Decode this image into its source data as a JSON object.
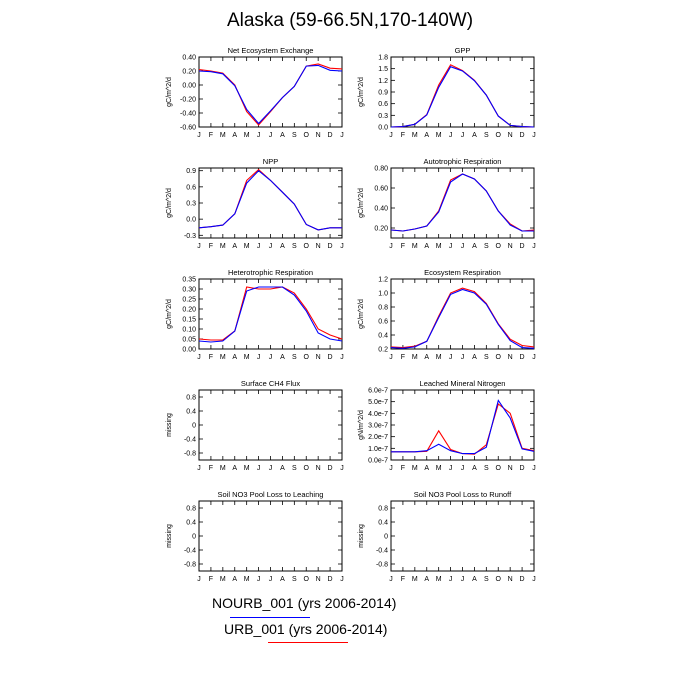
{
  "figure": {
    "title": "Alaska (59-66.5N,170-140W)",
    "legend": [
      {
        "label": "NOURB_001 (yrs 2006-2014)",
        "color": "#0000ff"
      },
      {
        "label": "URB_001 (yrs 2006-2014)",
        "color": "#ff0000"
      }
    ]
  },
  "chart_data": [
    {
      "type": "line",
      "title": "Net Ecosystem Exchange",
      "ylabel": "gC/m^2/d",
      "ylim": [
        -0.6,
        0.4
      ],
      "yticks": [
        "0.40",
        "0.20",
        "0.00",
        "-0.20",
        "-0.40",
        "-0.60"
      ],
      "categories": [
        "J",
        "F",
        "M",
        "A",
        "M",
        "J",
        "J",
        "A",
        "S",
        "O",
        "N",
        "D",
        "J"
      ],
      "series": [
        {
          "color": "#ff0000",
          "values": [
            0.22,
            0.2,
            0.17,
            0.0,
            -0.38,
            -0.57,
            -0.38,
            -0.18,
            -0.02,
            0.27,
            0.3,
            0.24,
            0.23
          ]
        },
        {
          "color": "#0000ff",
          "values": [
            0.2,
            0.19,
            0.16,
            -0.01,
            -0.35,
            -0.55,
            -0.37,
            -0.18,
            -0.02,
            0.27,
            0.28,
            0.21,
            0.2
          ]
        }
      ]
    },
    {
      "type": "line",
      "title": "GPP",
      "ylabel": "gC/m^2/d",
      "ylim": [
        0.0,
        1.8
      ],
      "yticks": [
        "1.8",
        "1.5",
        "1.2",
        "0.9",
        "0.6",
        "0.3",
        "0.0"
      ],
      "categories": [
        "J",
        "F",
        "M",
        "A",
        "M",
        "J",
        "J",
        "A",
        "S",
        "O",
        "N",
        "D",
        "J"
      ],
      "series": [
        {
          "color": "#ff0000",
          "values": [
            0.0,
            0.01,
            0.07,
            0.32,
            1.08,
            1.6,
            1.45,
            1.2,
            0.82,
            0.28,
            0.04,
            0.01,
            0.0
          ]
        },
        {
          "color": "#0000ff",
          "values": [
            0.0,
            0.01,
            0.07,
            0.31,
            1.02,
            1.55,
            1.44,
            1.19,
            0.82,
            0.28,
            0.04,
            0.01,
            0.0
          ]
        }
      ]
    },
    {
      "type": "line",
      "title": "NPP",
      "ylabel": "gC/m^2/d",
      "ylim": [
        -0.35,
        0.95
      ],
      "yticks": [
        "0.9",
        "0.6",
        "0.3",
        "0.0",
        "-0.3"
      ],
      "categories": [
        "J",
        "F",
        "M",
        "A",
        "M",
        "J",
        "J",
        "A",
        "S",
        "O",
        "N",
        "D",
        "J"
      ],
      "series": [
        {
          "color": "#ff0000",
          "values": [
            -0.16,
            -0.14,
            -0.11,
            0.1,
            0.72,
            0.92,
            0.72,
            0.5,
            0.28,
            -0.1,
            -0.2,
            -0.16,
            -0.16
          ]
        },
        {
          "color": "#0000ff",
          "values": [
            -0.16,
            -0.14,
            -0.11,
            0.1,
            0.67,
            0.9,
            0.72,
            0.5,
            0.28,
            -0.1,
            -0.2,
            -0.16,
            -0.16
          ]
        }
      ]
    },
    {
      "type": "line",
      "title": "Autotrophic Respiration",
      "ylabel": "gC/m^2/d",
      "ylim": [
        0.1,
        0.8
      ],
      "yticks": [
        "0.80",
        "0.60",
        "0.40",
        "0.20"
      ],
      "categories": [
        "J",
        "F",
        "M",
        "A",
        "M",
        "J",
        "J",
        "A",
        "S",
        "O",
        "N",
        "D",
        "J"
      ],
      "series": [
        {
          "color": "#ff0000",
          "values": [
            0.18,
            0.17,
            0.19,
            0.22,
            0.37,
            0.68,
            0.74,
            0.69,
            0.57,
            0.37,
            0.24,
            0.17,
            0.18
          ]
        },
        {
          "color": "#0000ff",
          "values": [
            0.18,
            0.17,
            0.19,
            0.22,
            0.36,
            0.66,
            0.74,
            0.69,
            0.57,
            0.37,
            0.23,
            0.17,
            0.17
          ]
        }
      ]
    },
    {
      "type": "line",
      "title": "Heterotrophic Respiration",
      "ylabel": "gC/m^2/d",
      "ylim": [
        0.0,
        0.35
      ],
      "yticks": [
        "0.35",
        "0.30",
        "0.25",
        "0.20",
        "0.15",
        "0.10",
        "0.05",
        "0.00"
      ],
      "categories": [
        "J",
        "F",
        "M",
        "A",
        "M",
        "J",
        "J",
        "A",
        "S",
        "O",
        "N",
        "D",
        "J"
      ],
      "series": [
        {
          "color": "#ff0000",
          "values": [
            0.05,
            0.045,
            0.045,
            0.09,
            0.31,
            0.3,
            0.3,
            0.31,
            0.28,
            0.2,
            0.1,
            0.07,
            0.05
          ]
        },
        {
          "color": "#0000ff",
          "values": [
            0.04,
            0.035,
            0.04,
            0.09,
            0.29,
            0.31,
            0.31,
            0.31,
            0.27,
            0.19,
            0.08,
            0.05,
            0.04
          ]
        }
      ]
    },
    {
      "type": "line",
      "title": "Ecosystem Respiration",
      "ylabel": "gC/m^2/d",
      "ylim": [
        0.2,
        1.2
      ],
      "yticks": [
        "1.2",
        "1.0",
        "0.8",
        "0.6",
        "0.4",
        "0.2"
      ],
      "categories": [
        "J",
        "F",
        "M",
        "A",
        "M",
        "J",
        "J",
        "A",
        "S",
        "O",
        "N",
        "D",
        "J"
      ],
      "series": [
        {
          "color": "#ff0000",
          "values": [
            0.23,
            0.22,
            0.24,
            0.31,
            0.67,
            1.0,
            1.07,
            1.02,
            0.85,
            0.56,
            0.34,
            0.25,
            0.23
          ]
        },
        {
          "color": "#0000ff",
          "values": [
            0.22,
            0.21,
            0.23,
            0.31,
            0.65,
            0.98,
            1.05,
            1.0,
            0.84,
            0.55,
            0.32,
            0.22,
            0.21
          ]
        }
      ]
    },
    {
      "type": "line",
      "title": "Surface CH4 Flux",
      "ylabel": "missing",
      "ylim": [
        -1.0,
        1.0
      ],
      "yticks": [
        "0.8",
        "0.4",
        "0",
        "-0.4",
        "-0.8"
      ],
      "categories": [
        "J",
        "F",
        "M",
        "A",
        "M",
        "J",
        "J",
        "A",
        "S",
        "O",
        "N",
        "D",
        "J"
      ],
      "series": []
    },
    {
      "type": "line",
      "title": "Leached Mineral Nitrogen",
      "ylabel": "gN/m^2/d",
      "ylim": [
        0.0,
        6.0
      ],
      "yticks": [
        "6.0e-7",
        "5.0e-7",
        "4.0e-7",
        "3.0e-7",
        "2.0e-7",
        "1.0e-7",
        "0.0e-7"
      ],
      "categories": [
        "J",
        "F",
        "M",
        "A",
        "M",
        "J",
        "J",
        "A",
        "S",
        "O",
        "N",
        "D",
        "J"
      ],
      "series": [
        {
          "color": "#ff0000",
          "values": [
            0.7,
            0.7,
            0.7,
            0.75,
            2.5,
            0.9,
            0.55,
            0.5,
            1.3,
            4.8,
            4.0,
            1.0,
            0.8
          ]
        },
        {
          "color": "#0000ff",
          "values": [
            0.7,
            0.7,
            0.7,
            0.8,
            1.35,
            0.8,
            0.55,
            0.55,
            1.1,
            5.1,
            3.6,
            0.95,
            0.75
          ]
        }
      ]
    },
    {
      "type": "line",
      "title": "Soil NO3 Pool Loss to Leaching",
      "ylabel": "missing",
      "ylim": [
        -1.0,
        1.0
      ],
      "yticks": [
        "0.8",
        "0.4",
        "0",
        "-0.4",
        "-0.8"
      ],
      "categories": [
        "J",
        "F",
        "M",
        "A",
        "M",
        "J",
        "J",
        "A",
        "S",
        "O",
        "N",
        "D",
        "J"
      ],
      "series": []
    },
    {
      "type": "line",
      "title": "Soil NO3 Pool Loss to Runoff",
      "ylabel": "missing",
      "ylim": [
        -1.0,
        1.0
      ],
      "yticks": [
        "0.8",
        "0.4",
        "0",
        "-0.4",
        "-0.8"
      ],
      "categories": [
        "J",
        "F",
        "M",
        "A",
        "M",
        "J",
        "J",
        "A",
        "S",
        "O",
        "N",
        "D",
        "J"
      ],
      "series": []
    }
  ]
}
